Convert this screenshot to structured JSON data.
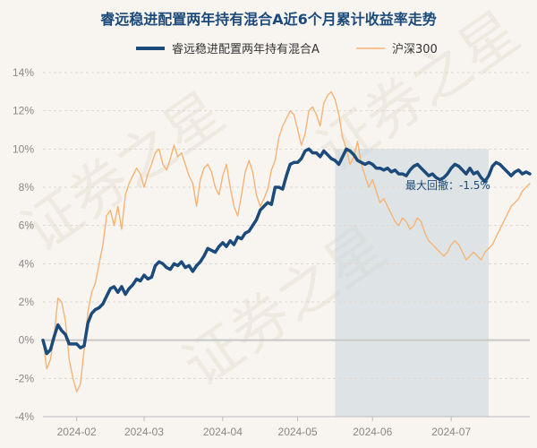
{
  "chart_data": {
    "type": "line",
    "title": "睿远稳进配置两年持有混合A近6个月累计收益率走势",
    "xlabel": "",
    "ylabel": "",
    "ylim": [
      -4,
      14
    ],
    "xlim": [
      0,
      130
    ],
    "yticks": [
      -4,
      -2,
      0,
      2,
      4,
      6,
      8,
      10,
      12,
      14
    ],
    "ytick_labels": [
      "-4%",
      "-2%",
      "0%",
      "2%",
      "4%",
      "6%",
      "8%",
      "10%",
      "12%",
      "14%"
    ],
    "xticks": [
      {
        "x": 9,
        "label": "2024-02"
      },
      {
        "x": 27,
        "label": "2024-03"
      },
      {
        "x": 48,
        "label": "2024-04"
      },
      {
        "x": 68,
        "label": "2024-05"
      },
      {
        "x": 88,
        "label": "2024-06"
      },
      {
        "x": 109,
        "label": "2024-07"
      }
    ],
    "grid": true,
    "legend_position": "top",
    "series": [
      {
        "name": "睿远稳进配置两年持有混合A",
        "color": "#1c4a7a",
        "x": [
          0,
          1,
          2,
          3,
          4,
          5,
          6,
          7,
          8,
          9,
          10,
          11,
          12,
          13,
          14,
          15,
          16,
          17,
          18,
          19,
          20,
          21,
          22,
          23,
          24,
          25,
          26,
          27,
          28,
          29,
          30,
          31,
          32,
          33,
          34,
          35,
          36,
          37,
          38,
          39,
          40,
          41,
          42,
          43,
          44,
          45,
          46,
          47,
          48,
          49,
          50,
          51,
          52,
          53,
          54,
          55,
          56,
          57,
          58,
          59,
          60,
          61,
          62,
          63,
          64,
          65,
          66,
          67,
          68,
          69,
          70,
          71,
          72,
          73,
          74,
          75,
          76,
          77,
          78,
          79,
          80,
          81,
          82,
          83,
          84,
          85,
          86,
          87,
          88,
          89,
          90,
          91,
          92,
          93,
          94,
          95,
          96,
          97,
          98,
          99,
          100,
          101,
          102,
          103,
          104,
          105,
          106,
          107,
          108,
          109,
          110,
          111,
          112,
          113,
          114,
          115,
          116,
          117,
          118,
          119,
          120,
          121,
          122,
          123,
          124,
          125,
          126,
          127,
          128,
          129,
          130
        ],
        "values": [
          0.0,
          -0.7,
          -0.5,
          0.2,
          0.8,
          0.5,
          0.3,
          -0.2,
          -0.2,
          -0.2,
          -0.4,
          -0.3,
          0.9,
          1.4,
          1.6,
          1.7,
          1.9,
          2.3,
          2.7,
          2.8,
          2.5,
          2.8,
          2.4,
          2.7,
          2.9,
          3.2,
          3.1,
          3.4,
          3.2,
          3.3,
          3.9,
          4.1,
          4.0,
          3.8,
          3.7,
          4.0,
          3.9,
          4.1,
          3.8,
          3.9,
          3.6,
          3.9,
          4.1,
          4.4,
          4.8,
          4.7,
          4.6,
          4.9,
          5.1,
          4.9,
          5.2,
          5.0,
          5.4,
          5.3,
          5.6,
          5.7,
          6.0,
          6.3,
          6.8,
          7.0,
          7.2,
          7.1,
          8.0,
          8.0,
          7.9,
          8.6,
          9.2,
          9.3,
          9.3,
          9.5,
          9.9,
          10.0,
          9.8,
          9.8,
          9.6,
          9.9,
          9.7,
          9.5,
          9.4,
          9.2,
          9.6,
          10.0,
          9.9,
          9.7,
          9.4,
          9.3,
          9.2,
          9.3,
          9.2,
          9.0,
          9.0,
          8.9,
          9.0,
          8.8,
          8.9,
          8.7,
          8.7,
          8.6,
          8.9,
          9.1,
          9.2,
          9.0,
          8.8,
          8.6,
          8.7,
          8.5,
          8.4,
          8.5,
          8.7,
          9.0,
          9.2,
          9.1,
          8.9,
          8.7,
          9.0,
          8.7,
          8.8,
          8.5,
          8.3,
          8.6,
          9.1,
          9.3,
          9.2,
          9.0,
          8.8,
          8.6,
          8.8,
          8.9,
          8.7,
          8.8,
          8.7
        ]
      },
      {
        "name": "沪深300",
        "color": "#f5b476",
        "x": [
          0,
          1,
          2,
          3,
          4,
          5,
          6,
          7,
          8,
          9,
          10,
          11,
          12,
          13,
          14,
          15,
          16,
          17,
          18,
          19,
          20,
          21,
          22,
          23,
          24,
          25,
          26,
          27,
          28,
          29,
          30,
          31,
          32,
          33,
          34,
          35,
          36,
          37,
          38,
          39,
          40,
          41,
          42,
          43,
          44,
          45,
          46,
          47,
          48,
          49,
          50,
          51,
          52,
          53,
          54,
          55,
          56,
          57,
          58,
          59,
          60,
          61,
          62,
          63,
          64,
          65,
          66,
          67,
          68,
          69,
          70,
          71,
          72,
          73,
          74,
          75,
          76,
          77,
          78,
          79,
          80,
          81,
          82,
          83,
          84,
          85,
          86,
          87,
          88,
          89,
          90,
          91,
          92,
          93,
          94,
          95,
          96,
          97,
          98,
          99,
          100,
          101,
          102,
          103,
          104,
          105,
          106,
          107,
          108,
          109,
          110,
          111,
          112,
          113,
          114,
          115,
          116,
          117,
          118,
          119,
          120,
          121,
          122,
          123,
          124,
          125,
          126,
          127,
          128,
          129,
          130
        ],
        "values": [
          0.0,
          -1.5,
          -1.0,
          0.3,
          2.2,
          2.0,
          1.0,
          -1.0,
          -2.0,
          -2.7,
          -2.3,
          -0.5,
          1.5,
          2.5,
          3.0,
          4.0,
          5.0,
          6.5,
          6.8,
          6.0,
          7.0,
          5.8,
          7.6,
          8.2,
          8.6,
          9.0,
          8.7,
          8.0,
          8.7,
          9.2,
          9.8,
          10.0,
          9.2,
          8.9,
          9.5,
          10.2,
          9.6,
          9.8,
          9.2,
          8.6,
          8.2,
          7.0,
          8.4,
          9.0,
          9.2,
          8.8,
          8.0,
          7.6,
          8.6,
          9.2,
          8.0,
          7.0,
          6.5,
          7.6,
          8.8,
          9.4,
          8.8,
          7.6,
          7.0,
          7.4,
          7.9,
          8.9,
          9.4,
          10.6,
          11.2,
          11.6,
          12.0,
          11.8,
          11.0,
          10.2,
          10.8,
          12.0,
          12.2,
          11.8,
          11.2,
          12.4,
          12.8,
          13.0,
          12.6,
          11.8,
          10.6,
          10.0,
          9.2,
          9.6,
          10.4,
          9.2,
          8.6,
          8.0,
          8.4,
          7.8,
          7.2,
          7.4,
          7.0,
          6.6,
          6.2,
          6.0,
          6.4,
          6.2,
          5.8,
          6.0,
          6.4,
          6.2,
          5.6,
          5.2,
          5.0,
          4.8,
          4.6,
          4.4,
          4.6,
          5.0,
          5.2,
          5.0,
          4.6,
          4.2,
          4.4,
          4.6,
          4.4,
          4.2,
          4.6,
          4.8,
          5.0,
          5.4,
          5.8,
          6.2,
          6.6,
          7.0,
          7.2,
          7.4,
          7.8,
          8.0,
          8.2
        ]
      }
    ],
    "max_drawdown": {
      "label": "最大回撤：-1.5%",
      "x_start": 78,
      "x_end": 119
    }
  },
  "watermark": {
    "texts": [
      "证券之星",
      "证券之星",
      "证券之星"
    ]
  },
  "colors": {
    "background": "#f8f5f0",
    "title": "#1c4a7a",
    "fund_line": "#1c4a7a",
    "index_line": "#f5b476",
    "drawdown_fill": "#c9d3dd",
    "zero_line": "#c8c8c8",
    "grid": "#ddd8d0",
    "tick": "#888888",
    "annotation": "#1c4a7a",
    "watermark": "#e6e0d6"
  }
}
